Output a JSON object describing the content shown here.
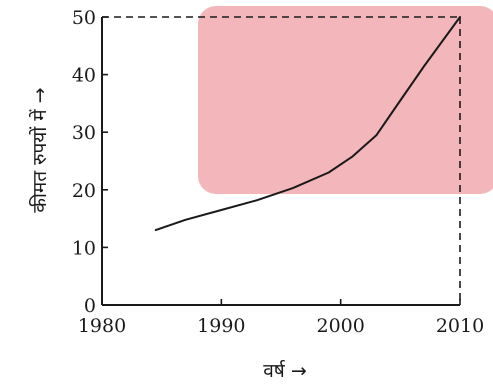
{
  "chart_data": {
    "type": "line",
    "title": "",
    "xlabel": "वर्ष →",
    "ylabel": "कीमत रुपयों में →",
    "xlim": [
      1980,
      2010
    ],
    "ylim": [
      0,
      50
    ],
    "x_ticks": [
      "1980",
      "1990",
      "2000",
      "2010"
    ],
    "y_ticks": [
      "0",
      "10",
      "20",
      "30",
      "40",
      "50"
    ],
    "grid": false,
    "series": [
      {
        "x": [
          1984.5,
          1987,
          1990,
          1993,
          1996,
          1999,
          2001,
          2003,
          2005,
          2007,
          2010
        ],
        "values": [
          13,
          14.8,
          16.5,
          18.2,
          20.3,
          23,
          25.8,
          29.5,
          35.5,
          41.5,
          50
        ]
      }
    ],
    "annotations": {
      "guide_point": {
        "x": 2010,
        "y": 50,
        "style": "dashed"
      }
    },
    "colors": {
      "line": "#1a1a1a",
      "axis": "#1a1a1a",
      "background_patch": "#f2b6bb"
    }
  }
}
